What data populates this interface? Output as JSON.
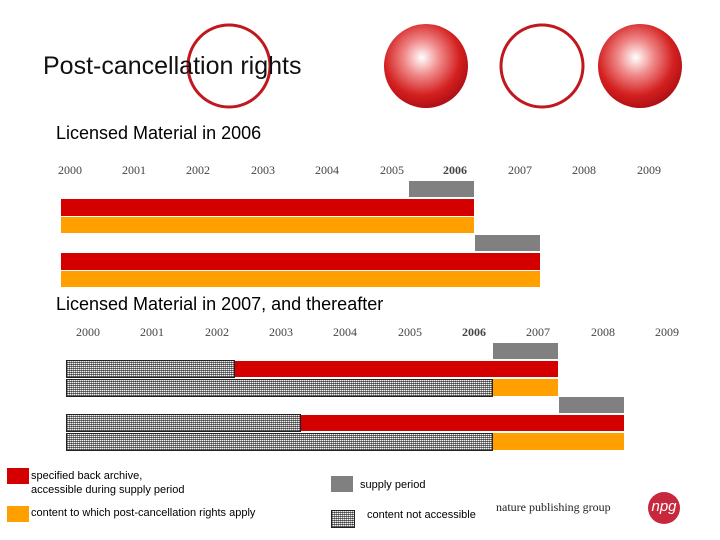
{
  "slide": {
    "title": "Post-cancellation rights",
    "colors": {
      "red": "#d40000",
      "orange": "#ffa000",
      "grey": "#808080",
      "circle_red": "#c0181e"
    }
  },
  "section1": {
    "heading": "Licensed Material in 2006",
    "years": [
      "2000",
      "2001",
      "2002",
      "2003",
      "2004",
      "2005",
      "2006",
      "2007",
      "2008",
      "2009"
    ],
    "bold_year": "2006"
  },
  "section2": {
    "heading": "Licensed Material in 2007, and thereafter",
    "years": [
      "2000",
      "2001",
      "2002",
      "2003",
      "2004",
      "2005",
      "2006",
      "2007",
      "2008",
      "2009"
    ],
    "bold_year": "2006"
  },
  "legend": {
    "red_label_line1": "specified back archive,",
    "red_label_line2": "accessible during supply period",
    "orange_label": "content  to which post-cancellation rights apply",
    "grey_label": "supply  period",
    "hatch_label": "content not accessible"
  },
  "logo": {
    "text": "nature publishing group",
    "badge": "npg"
  }
}
